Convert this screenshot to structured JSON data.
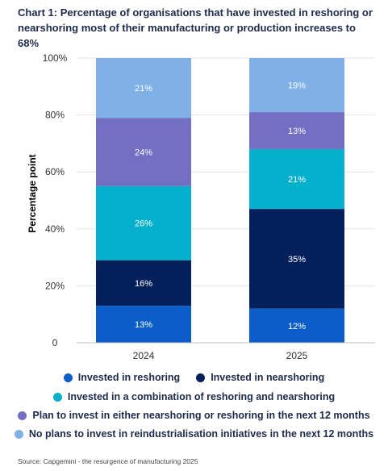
{
  "title": "Chart 1: Percentage of organisations that have invested in reshoring or nearshoring most of their manufacturing or production increases to 68%",
  "source": "Source: Capgemini - the resurgence of manufacturing 2025",
  "chart_data": {
    "type": "bar",
    "stacked": true,
    "categories": [
      "2024",
      "2025"
    ],
    "ylabel": "Percentage point",
    "ylim": [
      0,
      100
    ],
    "yticks": [
      "0",
      "20%",
      "40%",
      "60%",
      "80%",
      "100%"
    ],
    "grid": true,
    "legend_position": "bottom",
    "series": [
      {
        "name": "Invested in reshoring",
        "color": "#0b5ec8",
        "values": [
          13,
          12
        ],
        "labels": [
          "13%",
          "12%"
        ]
      },
      {
        "name": "Invested in nearshoring",
        "color": "#03205a",
        "values": [
          16,
          35
        ],
        "labels": [
          "16%",
          "35%"
        ]
      },
      {
        "name": "Invested in a combination of reshoring and nearshoring",
        "color": "#04b0cb",
        "values": [
          26,
          21
        ],
        "labels": [
          "26%",
          "21%"
        ]
      },
      {
        "name": "Plan to invest in either nearshoring or reshoring in the next 12 months",
        "color": "#7370c4",
        "values": [
          24,
          13
        ],
        "labels": [
          "24%",
          "13%"
        ]
      },
      {
        "name": "No plans to invest in reindustrialisation initiatives in the next 12 months",
        "color": "#7fb0e6",
        "values": [
          21,
          19
        ],
        "labels": [
          "21%",
          "19%"
        ]
      }
    ]
  }
}
